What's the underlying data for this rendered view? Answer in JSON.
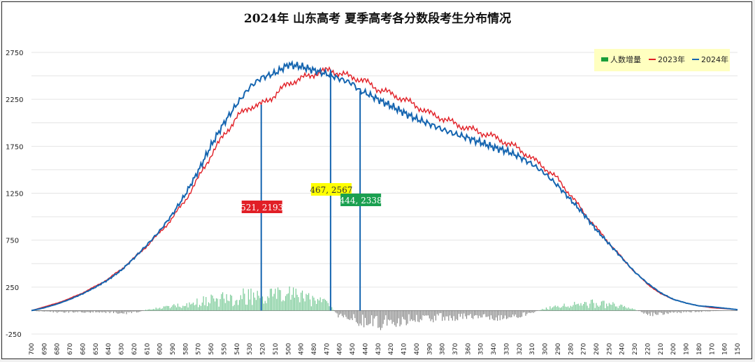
{
  "chart_data": {
    "type": "line",
    "title": "2024年 山东高考 夏季高考各分数段考生分布情况",
    "xlabel": "",
    "ylabel": "",
    "x_reversed": true,
    "xlim": [
      700,
      150
    ],
    "ylim": [
      -250,
      2750
    ],
    "y_ticks": [
      2750,
      2250,
      1750,
      1250,
      750,
      250,
      -250
    ],
    "x_tick_labels": [
      "700",
      "690",
      "680",
      "670",
      "660",
      "650",
      "640",
      "630",
      "620",
      "610",
      "600",
      "590",
      "580",
      "570",
      "560",
      "550",
      "540",
      "530",
      "520",
      "510",
      "500",
      "490",
      "480",
      "470",
      "460",
      "450",
      "440",
      "430",
      "420",
      "410",
      "400",
      "390",
      "380",
      "370",
      "360",
      "350",
      "340",
      "330",
      "320",
      "310",
      "300",
      "290",
      "280",
      "270",
      "260",
      "250",
      "240",
      "230",
      "220",
      "210",
      "200",
      "190",
      "180",
      "170",
      "160",
      "150"
    ],
    "grid": true,
    "legend": {
      "position": "top-right",
      "items": [
        {
          "label": "人数增量",
          "color": "#1a9e3a"
        },
        {
          "label": "2023年",
          "color": "#e11f26"
        },
        {
          "label": "2024年",
          "color": "#1565b0"
        }
      ]
    },
    "series": [
      {
        "name": "2023年",
        "color": "#e11f26",
        "x": [
          700,
          690,
          680,
          670,
          660,
          650,
          640,
          630,
          620,
          610,
          600,
          590,
          580,
          570,
          560,
          550,
          540,
          530,
          521,
          510,
          500,
          490,
          480,
          467,
          460,
          450,
          440,
          430,
          420,
          410,
          400,
          390,
          380,
          370,
          360,
          350,
          340,
          330,
          320,
          310,
          300,
          290,
          280,
          270,
          260,
          250,
          240,
          230,
          220,
          210,
          200,
          190,
          180,
          170,
          160,
          150
        ],
        "values": [
          0,
          40,
          80,
          130,
          190,
          260,
          340,
          440,
          560,
          690,
          830,
          990,
          1180,
          1410,
          1660,
          1870,
          2060,
          2170,
          2193,
          2300,
          2420,
          2470,
          2520,
          2567,
          2520,
          2490,
          2440,
          2360,
          2310,
          2250,
          2180,
          2100,
          2050,
          1990,
          1940,
          1900,
          1850,
          1790,
          1720,
          1620,
          1520,
          1400,
          1230,
          1050,
          880,
          720,
          560,
          410,
          280,
          180,
          120,
          80,
          50,
          30,
          20,
          10
        ]
      },
      {
        "name": "2024年",
        "color": "#1565b0",
        "x": [
          700,
          690,
          680,
          670,
          660,
          650,
          640,
          630,
          620,
          610,
          600,
          590,
          580,
          570,
          560,
          550,
          540,
          530,
          521,
          510,
          500,
          490,
          480,
          470,
          460,
          450,
          444,
          440,
          430,
          420,
          410,
          400,
          390,
          380,
          370,
          360,
          350,
          340,
          330,
          320,
          310,
          300,
          290,
          280,
          270,
          260,
          250,
          240,
          230,
          220,
          210,
          200,
          190,
          180,
          170,
          160,
          150
        ],
        "values": [
          0,
          30,
          70,
          120,
          180,
          250,
          330,
          430,
          560,
          700,
          850,
          1030,
          1240,
          1490,
          1760,
          2000,
          2200,
          2380,
          2480,
          2530,
          2620,
          2600,
          2560,
          2520,
          2470,
          2420,
          2338,
          2320,
          2250,
          2180,
          2110,
          2040,
          1990,
          1930,
          1880,
          1840,
          1790,
          1740,
          1700,
          1640,
          1560,
          1460,
          1330,
          1180,
          1030,
          860,
          710,
          560,
          410,
          290,
          190,
          120,
          80,
          50,
          40,
          25,
          10
        ]
      },
      {
        "name": "人数增量",
        "color": "#1a9e3a",
        "x": [
          700,
          690,
          680,
          670,
          660,
          650,
          640,
          630,
          620,
          610,
          600,
          590,
          580,
          570,
          560,
          550,
          540,
          530,
          520,
          510,
          500,
          490,
          480,
          470,
          460,
          450,
          440,
          430,
          420,
          410,
          400,
          390,
          380,
          370,
          360,
          350,
          340,
          330,
          320,
          310,
          300,
          290,
          280,
          270,
          260,
          250,
          240,
          230,
          220,
          210,
          200,
          190,
          180,
          170,
          160,
          150
        ],
        "values": [
          0,
          -10,
          -15,
          -15,
          -15,
          -15,
          -20,
          -20,
          -30,
          10,
          25,
          40,
          60,
          85,
          105,
          120,
          140,
          150,
          160,
          150,
          160,
          140,
          110,
          80,
          -60,
          -80,
          -120,
          -130,
          -120,
          -110,
          -90,
          -80,
          -70,
          -70,
          -60,
          -60,
          -70,
          -60,
          -50,
          -20,
          20,
          40,
          60,
          80,
          70,
          60,
          50,
          10,
          -40,
          -30,
          -20,
          -15,
          -10,
          -5,
          0,
          0
        ]
      }
    ],
    "annotations": [
      {
        "text": "521, 2193",
        "x": 521,
        "y": 2193,
        "box_color": "#e11f26",
        "text_color": "#ffffff"
      },
      {
        "text": "467, 2567",
        "x": 467,
        "y": 2567,
        "box_color": "#ffff00",
        "text_color": "#333333"
      },
      {
        "text": "444, 2338",
        "x": 444,
        "y": 2338,
        "box_color": "#1aa050",
        "text_color": "#ffffff"
      }
    ]
  }
}
